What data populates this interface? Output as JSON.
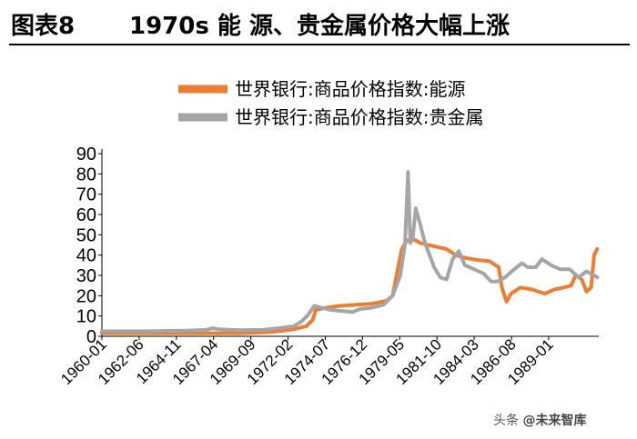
{
  "figure": {
    "label": "图表8",
    "title": "1970s 能 源、贵金属价格大幅上涨"
  },
  "watermark": {
    "platform": "头条",
    "handle": "@未来智库"
  },
  "chart_data": {
    "type": "line",
    "title": "1970s 能 源、贵金属价格大幅上涨",
    "xlabel": "",
    "ylabel": "",
    "ylim": [
      0,
      90
    ],
    "yticks": [
      0,
      10,
      20,
      30,
      40,
      50,
      60,
      70,
      80,
      90
    ],
    "xlim": [
      1960.0,
      1992.3
    ],
    "xtick_labels": [
      "1960-01",
      "1962-06",
      "1964-11",
      "1967-04",
      "1969-09",
      "1972-02",
      "1974-07",
      "1976-12",
      "1979-05",
      "1981-10",
      "1984-03",
      "1986-08",
      "1989-01"
    ],
    "legend_position": "top",
    "grid": false,
    "series": [
      {
        "name": "世界银行:商品价格指数:能源",
        "color": "#ED7D31",
        "x": [
          1960.0,
          1963.0,
          1966.0,
          1969.0,
          1970.8,
          1971.5,
          1972.5,
          1973.3,
          1973.7,
          1973.9,
          1974.5,
          1975.5,
          1976.5,
          1977.5,
          1978.5,
          1978.9,
          1979.2,
          1979.5,
          1979.8,
          1980.2,
          1980.7,
          1981.2,
          1981.8,
          1982.4,
          1983.0,
          1983.7,
          1984.5,
          1985.2,
          1985.8,
          1986.0,
          1986.3,
          1986.6,
          1987.2,
          1988.0,
          1988.8,
          1989.4,
          1990.0,
          1990.5,
          1990.8,
          1991.2,
          1991.5,
          1991.8,
          1992.0,
          1992.2
        ],
        "values": [
          1.5,
          1.5,
          1.5,
          1.5,
          2.0,
          2.5,
          3.5,
          5.0,
          8.0,
          13.0,
          14.0,
          15.0,
          15.5,
          16.0,
          17.5,
          20.0,
          32.0,
          43.0,
          47.0,
          48.0,
          46.0,
          45.0,
          44.0,
          43.0,
          40.0,
          38.5,
          37.5,
          37.0,
          34.0,
          24.0,
          17.0,
          21.0,
          24.0,
          23.0,
          21.0,
          23.0,
          24.0,
          25.0,
          30.0,
          28.0,
          22.0,
          24.0,
          40.0,
          43.0
        ]
      },
      {
        "name": "世界银行:商品价格指数:贵金属",
        "color": "#A5A5A5",
        "x": [
          1960.0,
          1963.0,
          1965.5,
          1966.8,
          1967.2,
          1967.6,
          1969.0,
          1970.5,
          1971.5,
          1972.5,
          1973.0,
          1973.4,
          1973.8,
          1974.3,
          1974.9,
          1975.5,
          1976.3,
          1976.8,
          1977.5,
          1978.3,
          1978.9,
          1979.4,
          1979.7,
          1979.9,
          1980.05,
          1980.2,
          1980.4,
          1980.7,
          1981.0,
          1981.3,
          1981.6,
          1982.0,
          1982.4,
          1982.8,
          1983.2,
          1983.6,
          1984.2,
          1984.8,
          1985.3,
          1985.7,
          1986.2,
          1986.8,
          1987.3,
          1987.7,
          1988.2,
          1988.6,
          1989.2,
          1989.8,
          1990.4,
          1991.0,
          1991.5,
          1992.0,
          1992.2
        ],
        "values": [
          2.5,
          2.5,
          2.8,
          3.2,
          4.0,
          3.5,
          3.0,
          3.2,
          4.0,
          5.0,
          7.5,
          10.5,
          15.0,
          14.0,
          13.0,
          12.5,
          12.0,
          13.5,
          14.0,
          15.5,
          20.0,
          30.0,
          45.0,
          81.0,
          46.0,
          48.0,
          63.0,
          55.0,
          46.0,
          40.0,
          34.0,
          29.0,
          28.0,
          38.0,
          42.0,
          35.0,
          33.0,
          31.0,
          27.0,
          27.0,
          29.0,
          33.0,
          36.0,
          34.0,
          34.0,
          38.0,
          35.0,
          33.0,
          33.0,
          29.0,
          32.0,
          30.0,
          29.0
        ]
      }
    ]
  }
}
